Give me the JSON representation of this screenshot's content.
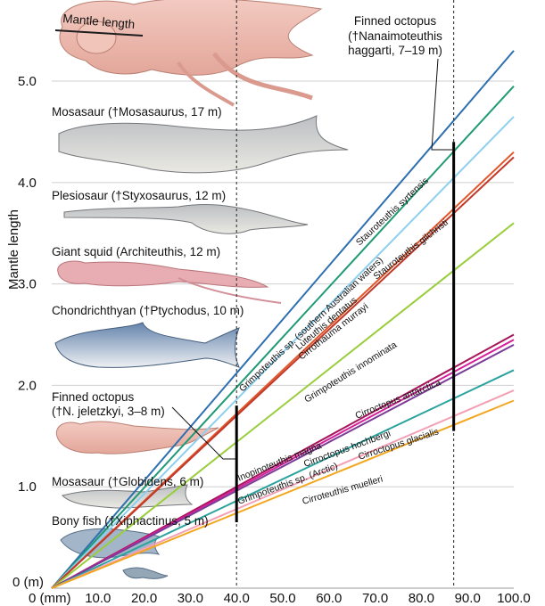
{
  "chart_data": {
    "type": "line",
    "title": "",
    "xlabel": "(mm)",
    "ylabel": "Mantle length",
    "x_axis_unit_prefix": "0 (mm)",
    "y_axis_unit_prefix": "0 (m)",
    "xlim": [
      0,
      100
    ],
    "ylim": [
      0,
      5.8
    ],
    "x_ticks": [
      "10.0",
      "20.0",
      "30.0",
      "40.0",
      "50.0",
      "60.0",
      "70.0",
      "80.0",
      "90.0",
      "100.0"
    ],
    "x_tick_values": [
      10,
      20,
      30,
      40,
      50,
      60,
      70,
      80,
      90,
      100
    ],
    "y_ticks": [
      "1.0",
      "2.0",
      "3.0",
      "4.0",
      "5.0"
    ],
    "y_tick_values": [
      1,
      2,
      3,
      4,
      5
    ],
    "reference_lines_x": [
      40,
      87
    ],
    "range_bars": [
      {
        "x": 40,
        "y_low": 0.65,
        "y_high": 1.8,
        "label_ref": "jeletzkyi"
      },
      {
        "x": 87,
        "y_low": 1.55,
        "y_high": 4.4,
        "label_ref": "haggarti"
      }
    ],
    "series": [
      {
        "name": "Grimpoteuthis sp. (southern Australian waters)",
        "color": "#2e6fb0",
        "points": [
          [
            0,
            0
          ],
          [
            100,
            5.3
          ]
        ]
      },
      {
        "name": "Stauroteuthis syrtensis",
        "color": "#1f9a75",
        "points": [
          [
            0,
            0
          ],
          [
            100,
            4.95
          ]
        ]
      },
      {
        "name": "Luteuthis dentatus",
        "color": "#8ecff0",
        "points": [
          [
            0,
            0
          ],
          [
            100,
            4.65
          ]
        ]
      },
      {
        "name": "Stauroteuthis gilchristi",
        "color": "#e2572a",
        "points": [
          [
            0,
            0
          ],
          [
            100,
            4.3
          ]
        ]
      },
      {
        "name": "Cirrothauma murrayi",
        "color": "#c0392b",
        "points": [
          [
            0,
            0
          ],
          [
            100,
            4.25
          ]
        ]
      },
      {
        "name": "Grimpoteuthis innominata",
        "color": "#9acd3c",
        "points": [
          [
            0,
            0
          ],
          [
            100,
            3.6
          ]
        ]
      },
      {
        "name": "Inopinoteuthis magna",
        "color": "#a8155a",
        "points": [
          [
            0,
            0
          ],
          [
            100,
            2.5
          ]
        ]
      },
      {
        "name": "Cirroctopus antarctica",
        "color": "#d4209a",
        "points": [
          [
            0,
            0
          ],
          [
            100,
            2.45
          ]
        ]
      },
      {
        "name": "Cirroctopus hochbergi",
        "color": "#7a3c96",
        "points": [
          [
            0,
            0
          ],
          [
            100,
            2.4
          ]
        ]
      },
      {
        "name": "Grimpoteuthis sp. (Arctic)",
        "color": "#2aa39e",
        "points": [
          [
            0,
            0
          ],
          [
            100,
            2.15
          ]
        ]
      },
      {
        "name": "Cirroctopus glacialis",
        "color": "#f3a0b4",
        "points": [
          [
            0,
            0
          ],
          [
            100,
            1.95
          ]
        ]
      },
      {
        "name": "Cirroteuthis muelleri",
        "color": "#f2a71f",
        "points": [
          [
            0,
            0
          ],
          [
            100,
            1.85
          ]
        ]
      }
    ],
    "annotations": {
      "mantle_length": "Mantle length",
      "haggarti_1": "Finned octopus",
      "haggarti_2": "(†Nanaimoteuthis",
      "haggarti_3": "haggarti, 7–19 m)",
      "mosasaurus": "Mosasaur (†Mosasaurus, 17 m)",
      "styxosaurus": "Plesiosaur (†Styxosaurus, 12 m)",
      "architeuthis": "Giant squid (Architeuthis, 12 m)",
      "ptychodus": "Chondrichthyan (†Ptychodus, 10 m)",
      "jeletzkyi_1": "Finned octopus",
      "jeletzkyi_2": "(†N. jeletzkyi, 3–8 m)",
      "globidens": "Mosasaur (†Globidens, 6 m)",
      "xiphactinus": "Bony fish (†Xiphactinus, 5 m)"
    }
  }
}
